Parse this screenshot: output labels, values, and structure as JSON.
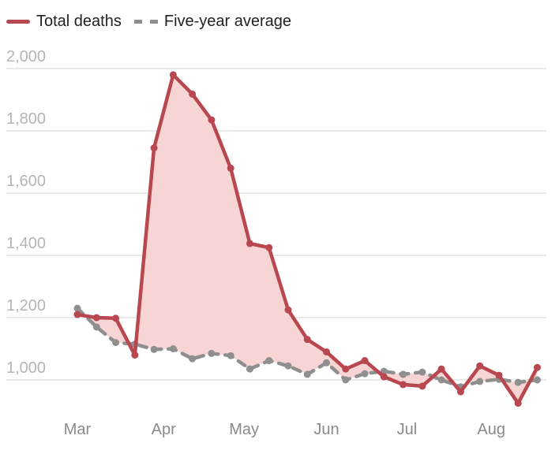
{
  "chart_data": {
    "type": "line",
    "legend": [
      {
        "label": "Total deaths",
        "color": "#b8474f",
        "style": "solid"
      },
      {
        "label": "Five-year average",
        "color": "#8f8f8f",
        "style": "dashed"
      }
    ],
    "legend_position": "top-left",
    "yticks": [
      {
        "value": 1000,
        "label": "1,000"
      },
      {
        "value": 1200,
        "label": "1,200"
      },
      {
        "value": 1400,
        "label": "1,400"
      },
      {
        "value": 1600,
        "label": "1,600"
      },
      {
        "value": 1800,
        "label": "1,800"
      },
      {
        "value": 2000,
        "label": "2,000"
      }
    ],
    "ylim": [
      900,
      2000
    ],
    "xticks": [
      {
        "label": "Mar",
        "week": 0
      },
      {
        "label": "Apr",
        "week": 4.5
      },
      {
        "label": "May",
        "week": 8.7
      },
      {
        "label": "Jun",
        "week": 13
      },
      {
        "label": "Jul",
        "week": 17.2
      },
      {
        "label": "Aug",
        "week": 21.6
      }
    ],
    "grid": true,
    "fill_between_series": "#f8d5d5",
    "series": [
      {
        "name": "Total deaths",
        "color": "#b8474f",
        "values": [
          1210,
          1200,
          1198,
          1080,
          1745,
          1980,
          1918,
          1835,
          1680,
          1438,
          1425,
          1225,
          1130,
          1090,
          1035,
          1062,
          1010,
          985,
          980,
          1035,
          962,
          1045,
          1015,
          925,
          1040
        ]
      },
      {
        "name": "Five-year average",
        "color": "#8f8f8f",
        "values": [
          1230,
          1170,
          1120,
          1115,
          1098,
          1100,
          1068,
          1085,
          1078,
          1035,
          1062,
          1045,
          1018,
          1055,
          1000,
          1020,
          1028,
          1018,
          1025,
          1000,
          978,
          995,
          1002,
          992,
          1000
        ]
      }
    ]
  }
}
